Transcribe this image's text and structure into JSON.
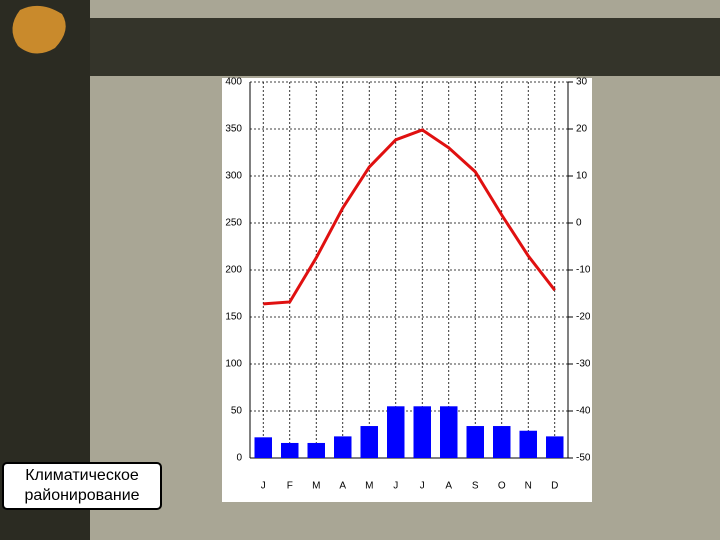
{
  "chart_data": {
    "type": "combo",
    "categories": [
      "J",
      "F",
      "M",
      "A",
      "M",
      "J",
      "J",
      "A",
      "S",
      "O",
      "N",
      "D"
    ],
    "series": [
      {
        "type": "bar",
        "color": "#0000ff",
        "axis": "y",
        "values": [
          22,
          16,
          16,
          23,
          34,
          55,
          55,
          55,
          34,
          34,
          29,
          23
        ]
      },
      {
        "type": "line",
        "color": "#e01010",
        "axis": "y2",
        "values": [
          -17.2,
          -16.8,
          -7.4,
          3.2,
          11.9,
          17.7,
          19.8,
          16,
          10.9,
          1.7,
          -7,
          -14.3
        ]
      }
    ],
    "ylim": [
      0,
      400
    ],
    "yticks": [
      0,
      50,
      100,
      150,
      200,
      250,
      300,
      350,
      400
    ],
    "y2lim": [
      -50,
      30
    ],
    "y2ticks": [
      -50,
      -40,
      -30,
      -20,
      -10,
      0,
      10,
      20,
      30
    ],
    "grid": true
  },
  "caption": "Климатическое районирование"
}
